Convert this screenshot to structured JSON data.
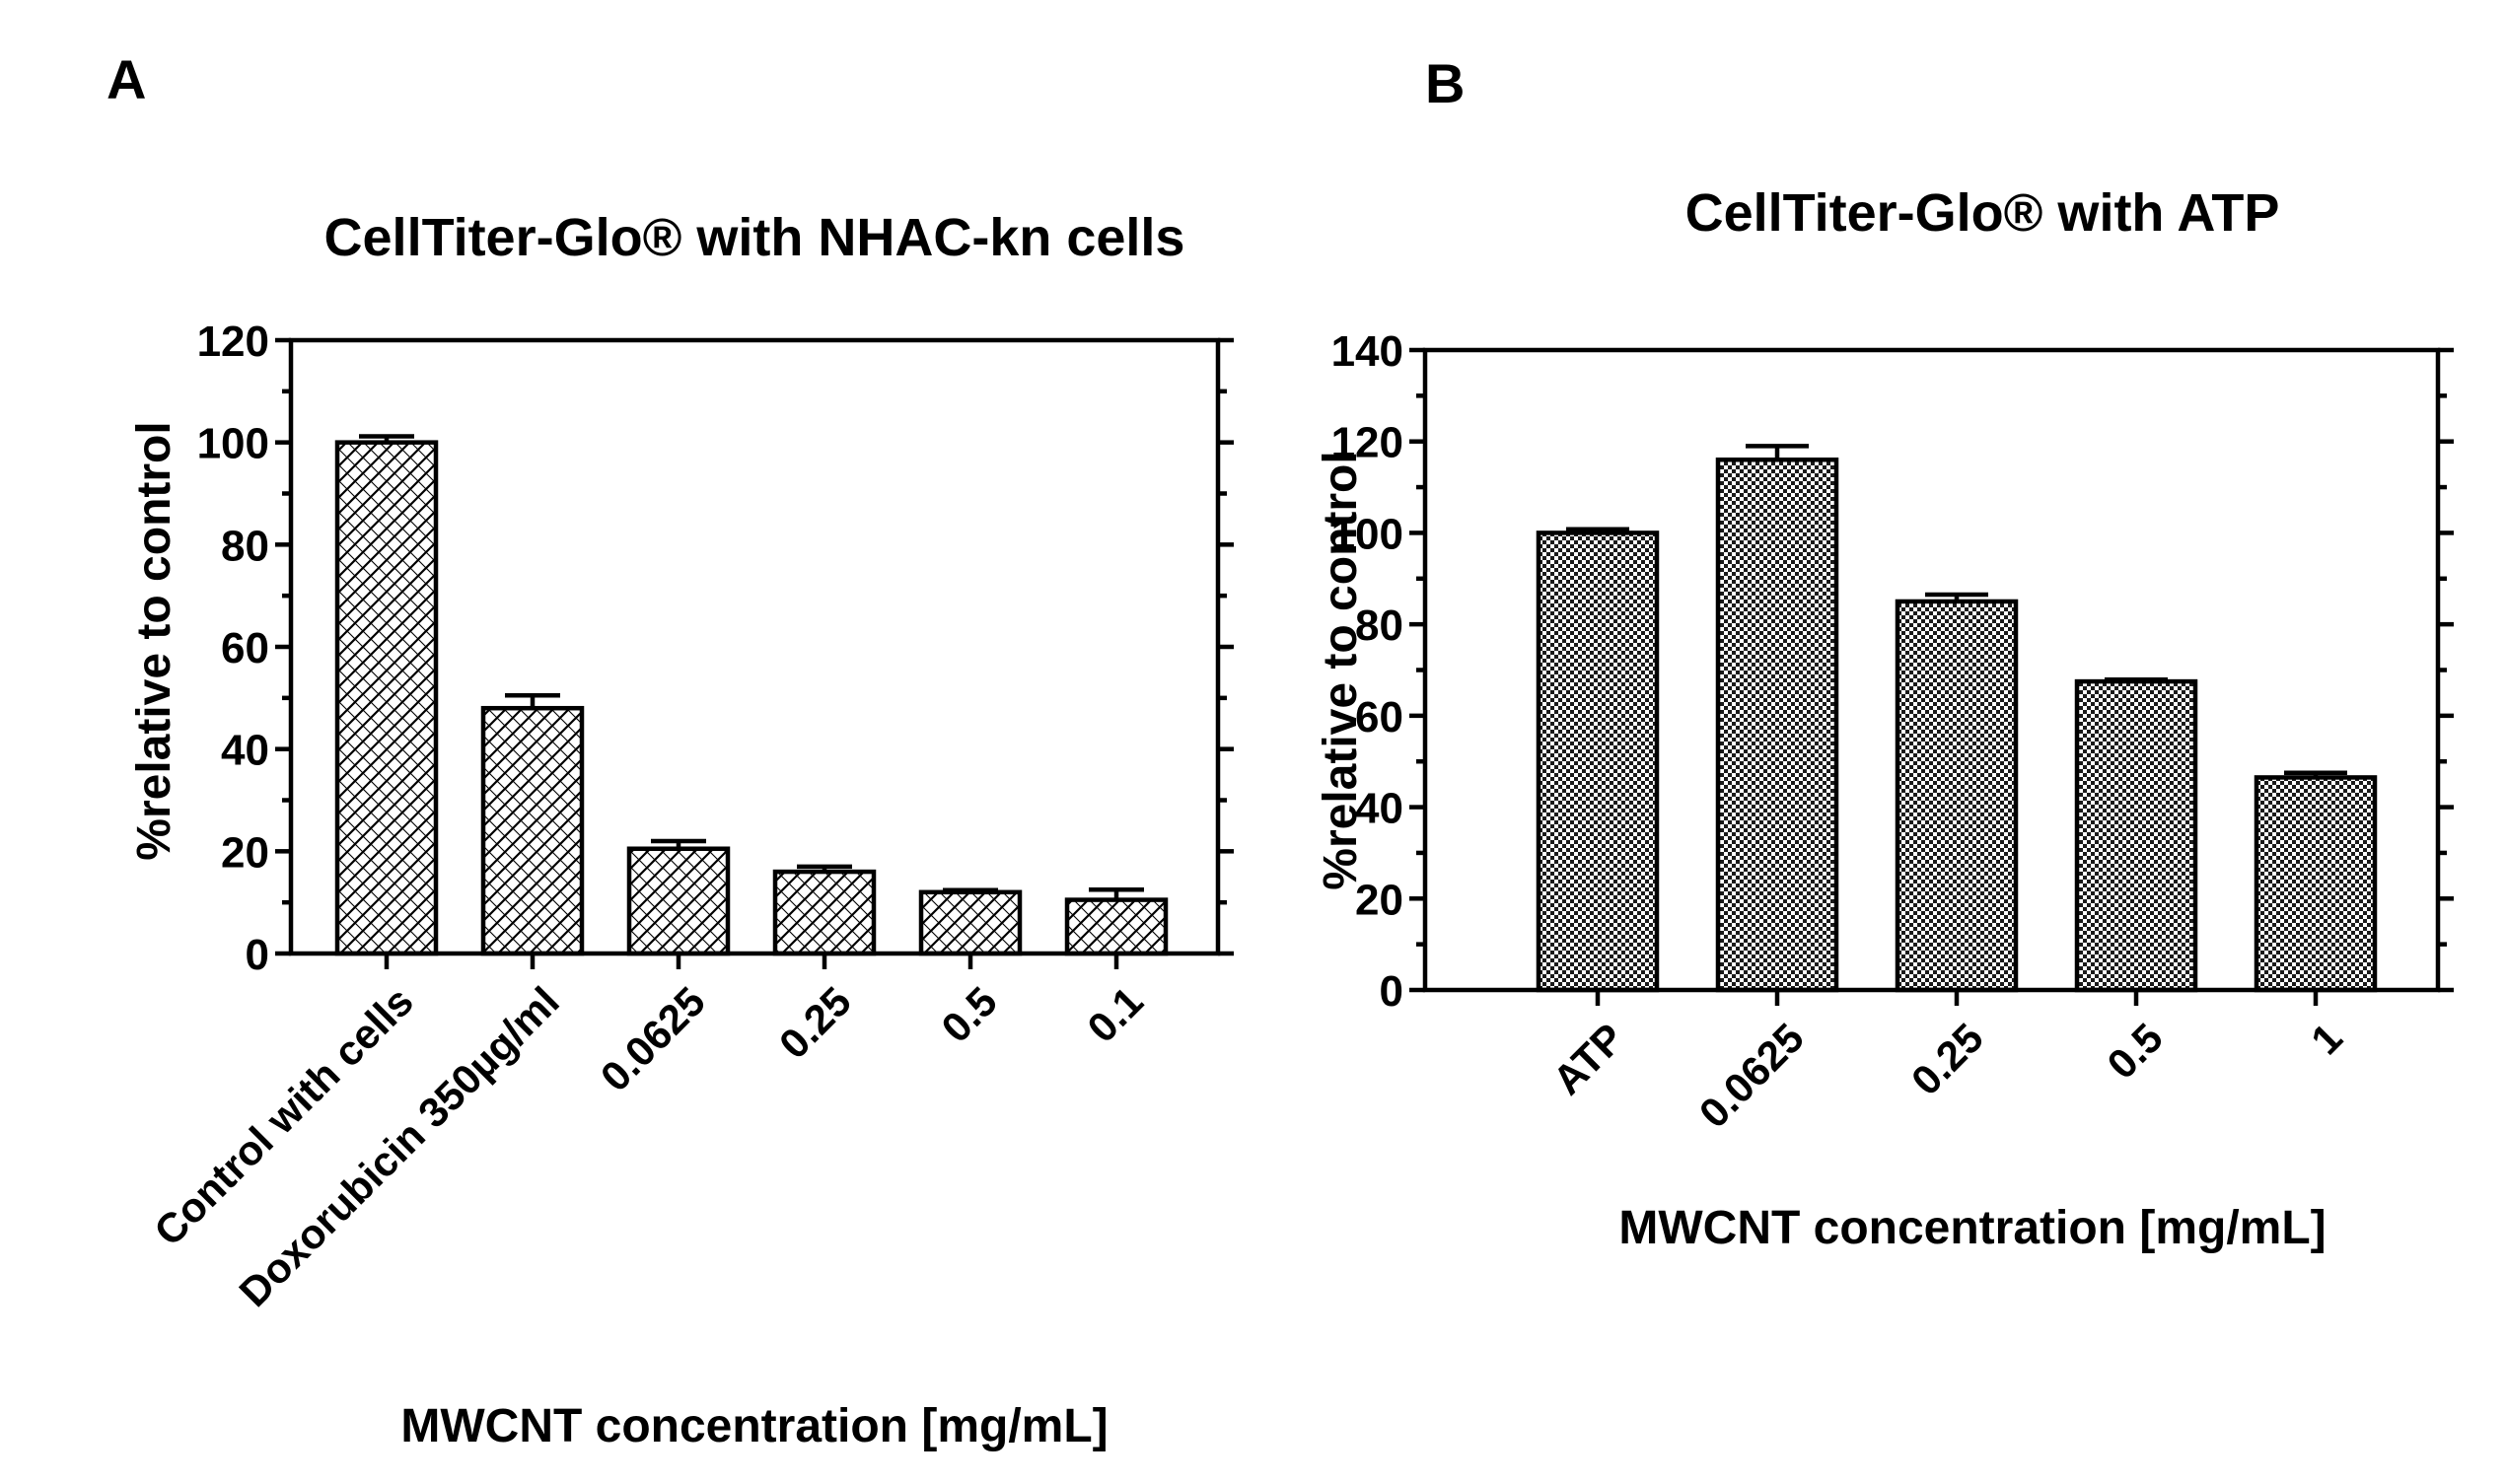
{
  "figure": {
    "panel_a_label": "A",
    "panel_b_label": "B"
  },
  "chart_data": [
    {
      "type": "bar",
      "panel": "A",
      "title": "CellTiter-Glo® with NHAC-kn cells",
      "xlabel": "MWCNT concentration [mg/mL]",
      "ylabel": "%relative to control",
      "ylim": [
        0,
        120
      ],
      "yticks": [
        0,
        20,
        40,
        60,
        80,
        100,
        120
      ],
      "y_tick_labels": [
        "0",
        "20",
        "40",
        "60",
        "80",
        "100",
        "120"
      ],
      "minor_tick_step": 10,
      "categories": [
        "Control with cells",
        "Doxorubicin 350µg/ml",
        "0.0625",
        "0.25",
        "0.5",
        "0.1"
      ],
      "values": [
        100,
        48,
        20.5,
        16,
        12,
        10.5
      ],
      "errors": [
        1.2,
        2.5,
        1.5,
        1.0,
        0.4,
        2.0
      ],
      "grid": false,
      "pattern": "crosshatch"
    },
    {
      "type": "bar",
      "panel": "B",
      "title": "CellTiter-Glo® with ATP",
      "xlabel": "MWCNT concentration [mg/mL]",
      "ylabel": "%relative to control",
      "ylim": [
        0,
        140
      ],
      "yticks": [
        0,
        20,
        40,
        60,
        80,
        100,
        120,
        140
      ],
      "y_tick_labels": [
        "0",
        "20",
        "40",
        "60",
        "80",
        "100",
        "120",
        "140"
      ],
      "minor_tick_step": 10,
      "categories": [
        "ATP",
        "0.0625",
        "0.25",
        "0.5",
        "1"
      ],
      "values": [
        100,
        116,
        85,
        67.5,
        46.5
      ],
      "errors": [
        0.8,
        3.0,
        1.5,
        0.4,
        1.0
      ],
      "grid": false,
      "pattern": "checker"
    }
  ]
}
